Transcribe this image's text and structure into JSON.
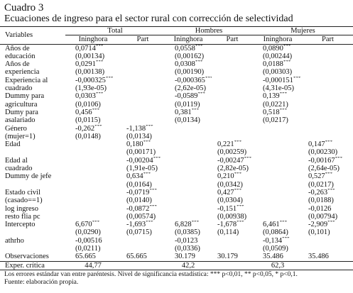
{
  "title": {
    "number": "Cuadro 3",
    "text": "Ecuaciones de ingreso para el sector rural con corrección de selectividad"
  },
  "table": {
    "header": {
      "variables": "Variables",
      "groups": [
        "Total",
        "Hombres",
        "Mujeres"
      ],
      "subheaders": [
        "Ininghora",
        "Part",
        "Ininghora",
        "Part",
        "Ininghora",
        "Part"
      ]
    },
    "rows": [
      {
        "label": [
          "Años de",
          "educación"
        ],
        "cells": [
          [
            "0,0714***",
            "(0,00134)"
          ],
          null,
          [
            "0,0558***",
            "(0,00162)"
          ],
          null,
          [
            "0,0890***",
            "(0,00244)"
          ],
          null
        ]
      },
      {
        "label": [
          "Años de",
          "experiencia"
        ],
        "cells": [
          [
            "0,0291***",
            "(0,00138)"
          ],
          null,
          [
            "0,0308***",
            "(0,00190)"
          ],
          null,
          [
            "0,0188***",
            "(0,00303)"
          ],
          null
        ]
      },
      {
        "label": [
          "Experiencia al",
          "cuadrado"
        ],
        "cells": [
          [
            "-0,000325***",
            "(1,93e-05)"
          ],
          null,
          [
            "-0,000365***",
            "(2,62e-05)"
          ],
          null,
          [
            "-0,000151***",
            "(4,31e-05)"
          ],
          null
        ]
      },
      {
        "label": [
          "Dummy para",
          "agricultura"
        ],
        "cells": [
          [
            "0,0303***",
            "(0,0106)"
          ],
          null,
          [
            "-0,0589***",
            "(0,0119)"
          ],
          null,
          [
            "0,139***",
            "(0,0221)"
          ],
          null
        ]
      },
      {
        "label": [
          "Dumy para",
          "asalariado"
        ],
        "cells": [
          [
            "0,456***",
            "(0,0115)"
          ],
          null,
          [
            "0,381***",
            "(0,0134)"
          ],
          null,
          [
            "0,518***",
            "(0,0217)"
          ],
          null
        ]
      },
      {
        "label": [
          "Género",
          "(mujer=1)"
        ],
        "cells": [
          [
            "-0,262***",
            "(0,0148)"
          ],
          [
            "-1,138***",
            "(0,0134)"
          ],
          null,
          null,
          null,
          null
        ]
      },
      {
        "label": [
          "Edad"
        ],
        "cells": [
          null,
          [
            "0,180***",
            "(0,00171)"
          ],
          null,
          [
            "0,221***",
            "(0,00259)"
          ],
          null,
          [
            "0,147***",
            "(0,00230)"
          ]
        ]
      },
      {
        "label": [
          "Edad al",
          "cuadrado"
        ],
        "cells": [
          null,
          [
            "-0,00204***",
            "(1,91e-05)"
          ],
          null,
          [
            "-0,00247***",
            "(2,82e-05)"
          ],
          null,
          [
            "-0,00167***",
            "(2,64e-05)"
          ]
        ]
      },
      {
        "label": [
          "Dummy de jefe"
        ],
        "cells": [
          null,
          [
            "0,634***",
            "(0,0164)"
          ],
          null,
          [
            "0,210***",
            "(0,0342)"
          ],
          null,
          [
            "0,527***",
            "(0,0217)"
          ]
        ]
      },
      {
        "label": [
          "Estado civil",
          "(casado==1)"
        ],
        "cells": [
          null,
          [
            "-0,0719***",
            "(0,0140)"
          ],
          null,
          [
            "0,427***",
            "(0,0304)"
          ],
          null,
          [
            "-0,263***",
            "(0,0188)"
          ]
        ]
      },
      {
        "label": [
          "log ingreso",
          "resto flia pc"
        ],
        "cells": [
          null,
          [
            "-0,0872***",
            "(0,00574)"
          ],
          null,
          [
            "-0,151***",
            "(0,00938)"
          ],
          null,
          [
            "-0,0126",
            "(0,00794)"
          ]
        ]
      },
      {
        "label": [
          "Intercepto"
        ],
        "cells": [
          [
            "6,670***",
            "(0,0290)"
          ],
          [
            "-1,693***",
            "(0,0715)"
          ],
          [
            "6,828***",
            "(0,0385)"
          ],
          [
            "-1,678***",
            "(0,114)"
          ],
          [
            "6,461***",
            "(0,0864)"
          ],
          [
            "-2,909***",
            "(0,101)"
          ]
        ]
      },
      {
        "label": [
          "athrho"
        ],
        "cells": [
          [
            "-0,00516",
            "(0,0211)"
          ],
          null,
          [
            "-0,0123",
            "(0,0336)"
          ],
          null,
          [
            "-0,134***",
            "(0,0509)"
          ],
          null
        ]
      }
    ],
    "observaciones": {
      "label": "Observaciones",
      "values": [
        "65.665",
        "65.665",
        "30.179",
        "30.179",
        "35.486",
        "35.486"
      ]
    },
    "exper_critica": {
      "label": "Exper. crítica",
      "values": [
        "44,77",
        "42,2",
        "62,3"
      ]
    }
  },
  "notes": [
    "Los errores estándar van entre paréntesis. Nivel de significancia estadística: *** p<0,01, ** p<0,05, * p<0,1.",
    "Fuente: elaboración propia."
  ]
}
